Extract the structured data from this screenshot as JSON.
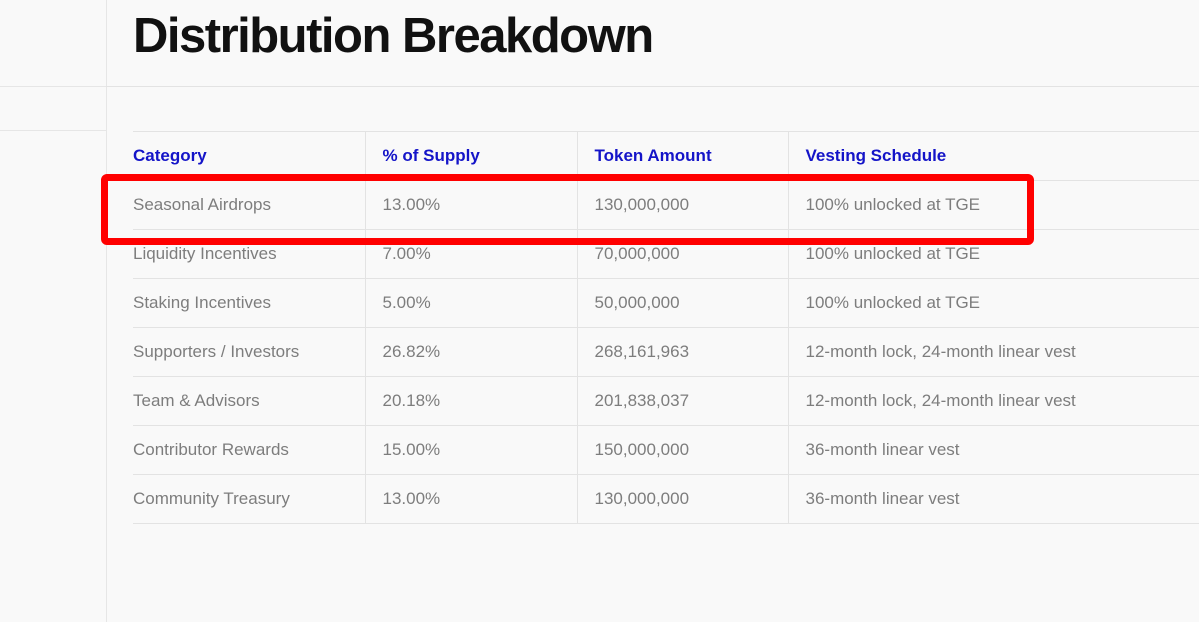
{
  "page": {
    "title": "Distribution Breakdown"
  },
  "table": {
    "headers": [
      "Category",
      "% of Supply",
      "Token Amount",
      "Vesting Schedule"
    ],
    "rows": [
      [
        "Seasonal Airdrops",
        "13.00%",
        "130,000,000",
        "100% unlocked at TGE"
      ],
      [
        "Liquidity Incentives",
        "7.00%",
        "70,000,000",
        "100% unlocked at TGE"
      ],
      [
        "Staking Incentives",
        "5.00%",
        "50,000,000",
        "100% unlocked at TGE"
      ],
      [
        "Supporters / Investors",
        "26.82%",
        "268,161,963",
        "12-month lock, 24-month linear vest"
      ],
      [
        "Team & Advisors",
        "20.18%",
        "201,838,037",
        "12-month lock, 24-month linear vest"
      ],
      [
        "Contributor Rewards",
        "15.00%",
        "150,000,000",
        "36-month linear vest"
      ],
      [
        "Community Treasury",
        "13.00%",
        "130,000,000",
        "36-month linear vest"
      ]
    ],
    "highlighted_row": 0
  },
  "colors": {
    "header_text": "#1414c8",
    "body_text": "#7d7d7d",
    "title_text": "#111111",
    "highlight_border": "#ff0000",
    "background": "#f9f9f9"
  }
}
